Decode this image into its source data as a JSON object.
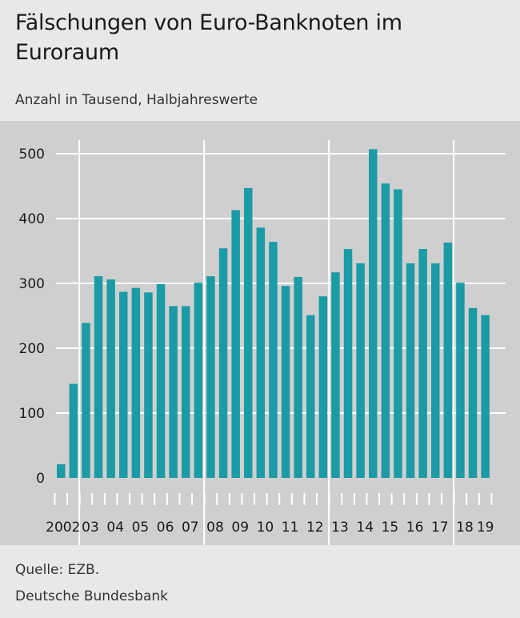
{
  "header": {
    "title": "Fälschungen von Euro-Banknoten im Euroraum",
    "subtitle": "Anzahl in Tausend, Halbjahreswerte"
  },
  "footer": {
    "source": "Quelle: EZB.",
    "publisher": "Deutsche Bundesbank"
  },
  "colors": {
    "bar": "#1a9ba6",
    "panel": "#cfcfcf",
    "grid": "#ffffff",
    "background": "#e8e8e8"
  },
  "chart_data": {
    "type": "bar",
    "title": "Fälschungen von Euro-Banknoten im Euroraum",
    "subtitle": "Anzahl in Tausend, Halbjahreswerte",
    "ylim": [
      0,
      500
    ],
    "yticks": [
      0,
      100,
      200,
      300,
      400,
      500
    ],
    "grid": true,
    "year_labels": [
      "2002",
      "03",
      "04",
      "05",
      "06",
      "07",
      "08",
      "09",
      "10",
      "11",
      "12",
      "13",
      "14",
      "15",
      "16",
      "17",
      "18",
      "19"
    ],
    "categories": [
      "2002 H1",
      "2002 H2",
      "2003 H1",
      "2003 H2",
      "2004 H1",
      "2004 H2",
      "2005 H1",
      "2005 H2",
      "2006 H1",
      "2006 H2",
      "2007 H1",
      "2007 H2",
      "2008 H1",
      "2008 H2",
      "2009 H1",
      "2009 H2",
      "2010 H1",
      "2010 H2",
      "2011 H1",
      "2011 H2",
      "2012 H1",
      "2012 H2",
      "2013 H1",
      "2013 H2",
      "2014 H1",
      "2014 H2",
      "2015 H1",
      "2015 H2",
      "2016 H1",
      "2016 H2",
      "2017 H1",
      "2017 H2",
      "2018 H1",
      "2018 H2",
      "2019 H1"
    ],
    "values": [
      21,
      145,
      239,
      311,
      306,
      287,
      293,
      286,
      299,
      265,
      265,
      301,
      311,
      354,
      413,
      447,
      386,
      364,
      296,
      310,
      251,
      280,
      317,
      353,
      331,
      507,
      454,
      445,
      331,
      353,
      331,
      363,
      301,
      262,
      251
    ]
  }
}
